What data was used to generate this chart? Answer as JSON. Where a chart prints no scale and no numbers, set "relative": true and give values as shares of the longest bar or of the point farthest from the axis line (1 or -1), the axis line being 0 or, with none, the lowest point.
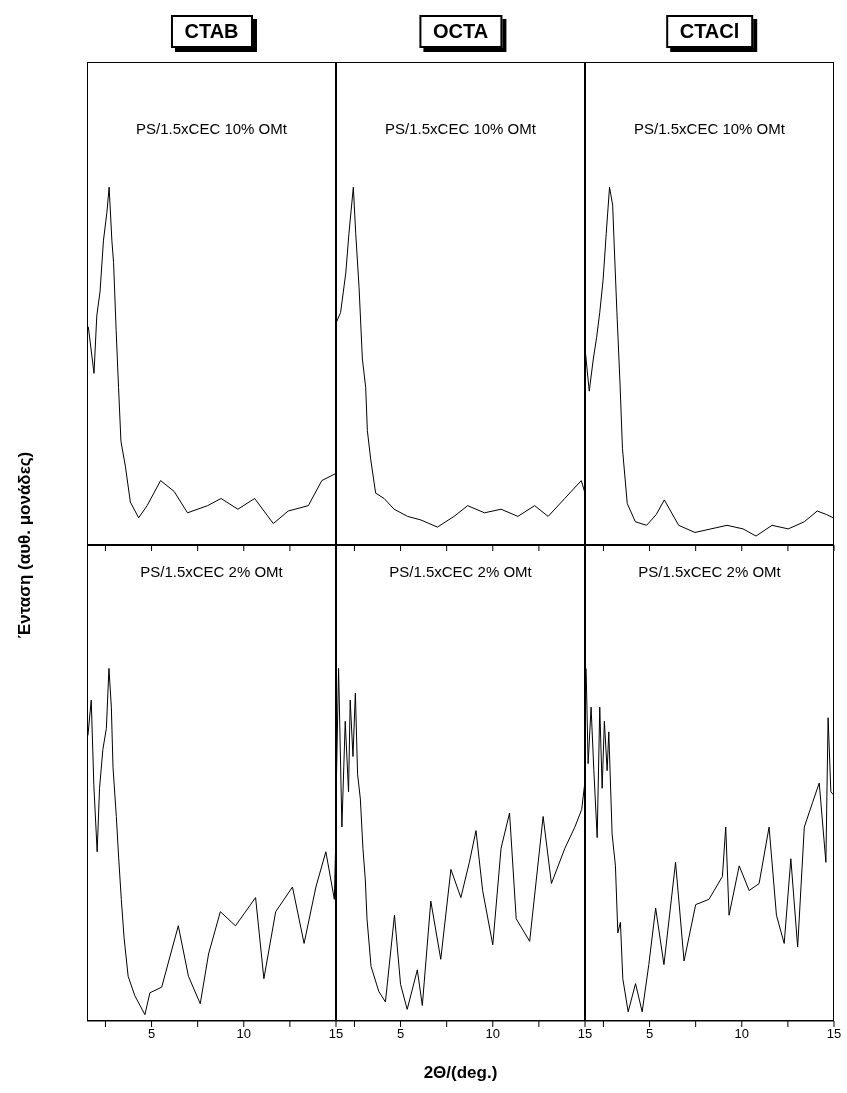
{
  "chart_data": [
    {
      "type": "line",
      "title": "CTAB",
      "ylabel": "Ένταση (αυθ. μονάδες)",
      "annotations": [
        "PS/1.5xCEC 10% OMt"
      ],
      "relative": true,
      "color": "#000000",
      "xlim": [
        1.5,
        15
      ],
      "xticks": [
        {
          "value": 2.5,
          "label": null
        },
        5,
        {
          "value": 7.5,
          "label": null
        },
        10,
        {
          "value": 12.5,
          "label": null
        },
        15
      ],
      "tick_labels": false,
      "x": [
        1.57,
        1.88,
        2.03,
        2.21,
        2.39,
        2.58,
        2.7,
        2.85,
        2.94,
        3.08,
        3.21,
        3.34,
        3.58,
        3.85,
        4.3,
        4.76,
        5.49,
        6.22,
        6.95,
        8.04,
        8.77,
        9.68,
        10.59,
        11.6,
        12.41,
        13.5,
        14.23,
        15
      ],
      "values": [
        0.61,
        0.48,
        0.64,
        0.71,
        0.85,
        0.93,
        1.0,
        0.85,
        0.79,
        0.6,
        0.44,
        0.29,
        0.22,
        0.12,
        0.076,
        0.11,
        0.18,
        0.15,
        0.09,
        0.11,
        0.13,
        0.1,
        0.13,
        0.06,
        0.095,
        0.11,
        0.18,
        0.2
      ]
    },
    {
      "type": "line",
      "title": "OCTA",
      "annotations": [
        "PS/1.5xCEC 10% OMt"
      ],
      "relative": true,
      "color": "#000000",
      "xlim": [
        1.5,
        15
      ],
      "xticks": [
        {
          "value": 2.5,
          "label": null
        },
        5,
        {
          "value": 7.5,
          "label": null
        },
        10,
        {
          "value": 12.5,
          "label": null
        },
        15
      ],
      "tick_labels": false,
      "x": [
        1.5,
        1.75,
        2.03,
        2.2,
        2.44,
        2.57,
        2.75,
        2.93,
        3.11,
        3.2,
        3.38,
        3.65,
        4.11,
        4.65,
        5.38,
        6.1,
        7.0,
        7.9,
        8.64,
        9.55,
        10.45,
        11.36,
        12.27,
        13.0,
        13.9,
        14.8,
        15.0
      ],
      "values": [
        0.62,
        0.65,
        0.76,
        0.87,
        1.0,
        0.87,
        0.72,
        0.52,
        0.44,
        0.32,
        0.24,
        0.145,
        0.13,
        0.1,
        0.08,
        0.07,
        0.05,
        0.08,
        0.11,
        0.09,
        0.1,
        0.08,
        0.11,
        0.08,
        0.13,
        0.18,
        0.145
      ]
    },
    {
      "type": "line",
      "title": "CTACl",
      "annotations": [
        "PS/1.5xCEC 10% OMt"
      ],
      "relative": true,
      "color": "#000000",
      "xlim": [
        1.5,
        15
      ],
      "xticks": [
        {
          "value": 2.5,
          "label": null
        },
        5,
        {
          "value": 7.5,
          "label": null
        },
        10,
        {
          "value": 12.5,
          "label": null
        },
        15
      ],
      "tick_labels": false,
      "x": [
        1.52,
        1.73,
        1.95,
        2.13,
        2.3,
        2.48,
        2.65,
        2.83,
        3.0,
        3.09,
        3.23,
        3.4,
        3.53,
        3.79,
        4.23,
        4.84,
        5.36,
        5.8,
        6.58,
        7.46,
        8.33,
        9.2,
        10.07,
        10.77,
        11.64,
        12.52,
        13.39,
        14.09,
        14.6,
        15.0
      ],
      "values": [
        0.54,
        0.43,
        0.52,
        0.58,
        0.65,
        0.74,
        0.87,
        1.0,
        0.95,
        0.83,
        0.65,
        0.45,
        0.27,
        0.116,
        0.065,
        0.055,
        0.085,
        0.126,
        0.055,
        0.035,
        0.045,
        0.055,
        0.045,
        0.025,
        0.055,
        0.045,
        0.065,
        0.095,
        0.085,
        0.075
      ]
    },
    {
      "type": "line",
      "annotations": [
        "PS/1.5xCEC 2% OMt"
      ],
      "relative": true,
      "color": "#000000",
      "xlim": [
        1.5,
        15
      ],
      "xticks": [
        {
          "value": 2.5,
          "label": null
        },
        5,
        {
          "value": 7.5,
          "label": null
        },
        10,
        {
          "value": 12.5,
          "label": null
        },
        15
      ],
      "tick_labels": "x",
      "x": [
        1.55,
        1.73,
        1.87,
        2.05,
        2.18,
        2.36,
        2.55,
        2.69,
        2.82,
        2.91,
        3.09,
        3.22,
        3.36,
        3.51,
        3.73,
        4.09,
        4.64,
        4.91,
        5.55,
        6.45,
        7.0,
        7.64,
        8.09,
        8.73,
        9.55,
        10.64,
        11.09,
        11.73,
        12.64,
        13.27,
        13.91,
        14.45,
        14.91,
        15.0
      ],
      "values": [
        0.81,
        0.91,
        0.67,
        0.48,
        0.66,
        0.77,
        0.83,
        1.0,
        0.89,
        0.72,
        0.58,
        0.46,
        0.345,
        0.236,
        0.127,
        0.072,
        0.018,
        0.08,
        0.096,
        0.27,
        0.127,
        0.049,
        0.19,
        0.31,
        0.27,
        0.35,
        0.12,
        0.31,
        0.38,
        0.22,
        0.38,
        0.48,
        0.345,
        0.54
      ]
    },
    {
      "type": "line",
      "xlabel": "2Θ/(deg.)",
      "annotations": [
        "PS/1.5xCEC 2% OMt"
      ],
      "relative": true,
      "color": "#000000",
      "xlim": [
        1.5,
        15
      ],
      "xticks": [
        {
          "value": 2.5,
          "label": null
        },
        5,
        {
          "value": 7.5,
          "label": null
        },
        10,
        {
          "value": 12.5,
          "label": null
        },
        15
      ],
      "tick_labels": "x",
      "x": [
        1.51,
        1.64,
        1.82,
        2.0,
        2.18,
        2.27,
        2.42,
        2.55,
        2.67,
        2.82,
        2.96,
        3.09,
        3.18,
        3.4,
        3.82,
        4.18,
        4.67,
        5.0,
        5.36,
        5.91,
        6.18,
        6.64,
        7.18,
        7.73,
        8.27,
        8.73,
        9.09,
        9.45,
        10.0,
        10.45,
        10.91,
        11.27,
        12.0,
        12.73,
        13.18,
        13.91,
        14.45,
        14.82,
        15.0
      ],
      "values": [
        0.65,
        1.0,
        0.55,
        0.85,
        0.65,
        0.91,
        0.75,
        0.93,
        0.7,
        0.63,
        0.49,
        0.4,
        0.29,
        0.155,
        0.084,
        0.054,
        0.3,
        0.104,
        0.033,
        0.145,
        0.044,
        0.34,
        0.175,
        0.43,
        0.35,
        0.45,
        0.54,
        0.37,
        0.216,
        0.49,
        0.59,
        0.29,
        0.226,
        0.58,
        0.39,
        0.49,
        0.55,
        0.6,
        0.68
      ]
    },
    {
      "type": "line",
      "annotations": [
        "PS/1.5xCEC 2% OMt"
      ],
      "relative": true,
      "color": "#000000",
      "xlim": [
        1.5,
        15
      ],
      "xticks": [
        {
          "value": 2.5,
          "label": null
        },
        5,
        {
          "value": 7.5,
          "label": null
        },
        10,
        {
          "value": 12.5,
          "label": null
        },
        15
      ],
      "tick_labels": "x",
      "x": [
        1.56,
        1.67,
        1.83,
        1.98,
        2.16,
        2.3,
        2.43,
        2.55,
        2.7,
        2.79,
        2.97,
        3.15,
        3.28,
        3.42,
        3.55,
        3.84,
        4.24,
        4.6,
        4.96,
        5.33,
        5.78,
        6.41,
        6.87,
        7.5,
        8.22,
        8.95,
        9.13,
        9.31,
        9.86,
        10.4,
        10.94,
        11.48,
        11.88,
        12.3,
        12.66,
        13.03,
        13.39,
        13.84,
        14.2,
        14.56,
        14.68,
        14.83,
        15.0
      ],
      "values": [
        1.0,
        0.73,
        0.89,
        0.71,
        0.52,
        0.89,
        0.66,
        0.85,
        0.71,
        0.82,
        0.53,
        0.44,
        0.25,
        0.28,
        0.12,
        0.026,
        0.106,
        0.026,
        0.16,
        0.32,
        0.16,
        0.45,
        0.17,
        0.33,
        0.345,
        0.41,
        0.55,
        0.3,
        0.44,
        0.37,
        0.39,
        0.55,
        0.3,
        0.22,
        0.46,
        0.21,
        0.55,
        0.62,
        0.675,
        0.45,
        0.86,
        0.65,
        0.64
      ]
    }
  ]
}
